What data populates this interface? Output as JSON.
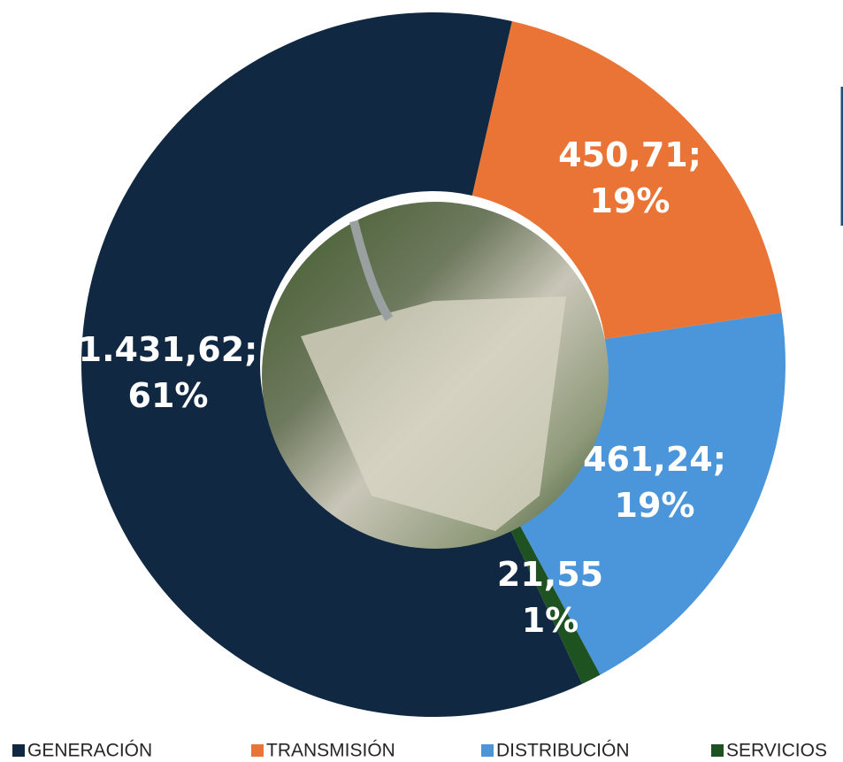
{
  "chart_data": {
    "type": "donut",
    "categories": [
      "GENERACIÓN",
      "TRANSMISIÓN",
      "DISTRIBUCIÓN",
      "SERVICIOS"
    ],
    "values": [
      1431.62,
      450.71,
      461.24,
      21.55
    ],
    "value_labels": [
      [
        "1.431,62;",
        "61%"
      ],
      [
        "450,71;",
        "19%"
      ],
      [
        "461,24;",
        "19%"
      ],
      [
        "21,55",
        "1%"
      ]
    ],
    "colors": [
      "#112843",
      "#ea7435",
      "#4b95da",
      "#1e5321"
    ],
    "legend": "bottom"
  }
}
